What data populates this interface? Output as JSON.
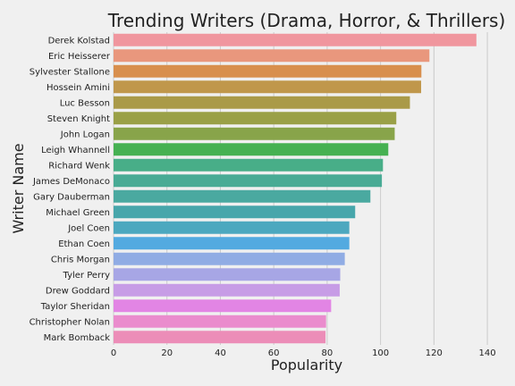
{
  "chart_data": {
    "type": "bar",
    "orientation": "horizontal",
    "title": "Trending Writers (Drama, Horror, & Thrillers)",
    "xlabel": "Popularity",
    "ylabel": "Writer Name",
    "xlim": [
      0,
      145
    ],
    "xticks": [
      0,
      20,
      40,
      60,
      80,
      100,
      120,
      140
    ],
    "grid": "vertical",
    "categories": [
      "Derek Kolstad",
      "Eric Heisserer",
      "Sylvester Stallone",
      "Hossein Amini",
      "Luc Besson",
      "Steven Knight",
      "John Logan",
      "Leigh Whannell",
      "Richard Wenk",
      "James DeMonaco",
      "Gary Dauberman",
      "Michael Green",
      "Joel Coen",
      "Ethan Coen",
      "Chris Morgan",
      "Tyler Perry",
      "Drew Goddard",
      "Taylor Sheridan",
      "Christopher Nolan",
      "Mark Bomback"
    ],
    "values": [
      135.9,
      118.3,
      115.3,
      115.2,
      111.0,
      105.9,
      105.3,
      102.9,
      100.9,
      100.5,
      96.2,
      90.5,
      88.3,
      88.3,
      86.6,
      84.9,
      84.7,
      81.5,
      79.6,
      79.4
    ],
    "colors": [
      "#f0969e",
      "#e9977d",
      "#d88f4d",
      "#c0974b",
      "#aa9a48",
      "#9aa047",
      "#88a44a",
      "#46b152",
      "#48ae88",
      "#49ab95",
      "#4aa9a0",
      "#47a6ab",
      "#4ca8bf",
      "#53aae0",
      "#90ace4",
      "#a7a6e5",
      "#c79ce6",
      "#e285e4",
      "#ea8ccd",
      "#ec8db8"
    ]
  }
}
